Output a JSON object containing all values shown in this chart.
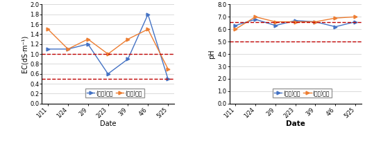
{
  "dates": [
    "1/11",
    "1/24",
    "2/9",
    "2/23",
    "3/9",
    "4/6",
    "5/25"
  ],
  "ec_supply": [
    1.1,
    1.1,
    1.2,
    0.6,
    0.9,
    1.8,
    0.5
  ],
  "ec_drain": [
    1.5,
    1.1,
    1.3,
    1.0,
    1.3,
    1.5,
    0.7
  ],
  "ec_hline1": 1.0,
  "ec_hline2": 0.5,
  "ec_ylim": [
    0.0,
    2.0
  ],
  "ec_yticks": [
    0.0,
    0.2,
    0.4,
    0.6,
    0.8,
    1.0,
    1.2,
    1.4,
    1.6,
    1.8,
    2.0
  ],
  "ec_ylabel": "EC(dS·m⁻¹)",
  "ph_supply": [
    6.3,
    6.8,
    6.3,
    6.7,
    6.6,
    6.2,
    6.6
  ],
  "ph_drain": [
    6.0,
    7.0,
    6.6,
    6.6,
    6.6,
    6.9,
    7.0
  ],
  "ph_hline1": 6.6,
  "ph_hline2": 5.0,
  "ph_ylim": [
    0.0,
    8.0
  ],
  "ph_yticks": [
    0.0,
    1.0,
    2.0,
    3.0,
    4.0,
    5.0,
    6.0,
    7.0,
    8.0
  ],
  "ph_ylabel": "pH",
  "xlabel": "Date",
  "legend_supply": "(급액)전북",
  "legend_drain": "(배액)전북",
  "supply_color": "#4472C4",
  "drain_color": "#ED7D31",
  "hline_color": "#C00000",
  "marker": ">",
  "markersize": 3.5,
  "linewidth": 1.0
}
